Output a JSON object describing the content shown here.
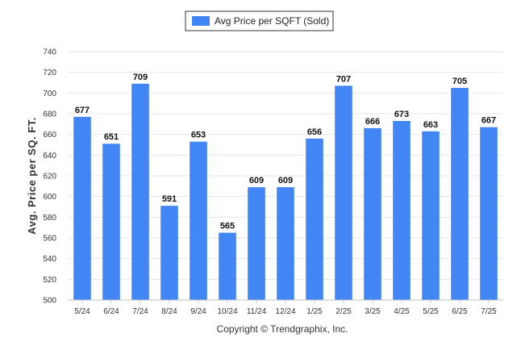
{
  "chart_data": {
    "type": "bar",
    "ylabel": "Avg. Price per SQ. FT.",
    "xlabel": "",
    "ylim": [
      500,
      740
    ],
    "yticks": [
      500,
      520,
      540,
      560,
      580,
      600,
      620,
      640,
      660,
      680,
      700,
      720,
      740
    ],
    "categories": [
      "5/24",
      "6/24",
      "7/24",
      "8/24",
      "9/24",
      "10/24",
      "11/24",
      "12/24",
      "1/25",
      "2/25",
      "3/25",
      "4/25",
      "5/25",
      "6/25",
      "7/25"
    ],
    "series": [
      {
        "name": "Avg Price per SQFT (Sold)",
        "color": "#4285f4",
        "values": [
          677,
          651,
          709,
          591,
          653,
          565,
          609,
          609,
          656,
          707,
          666,
          673,
          663,
          705,
          667
        ]
      }
    ],
    "grid": true,
    "legend": "top-center",
    "footer": "Copyright © Trendgraphix, Inc."
  }
}
